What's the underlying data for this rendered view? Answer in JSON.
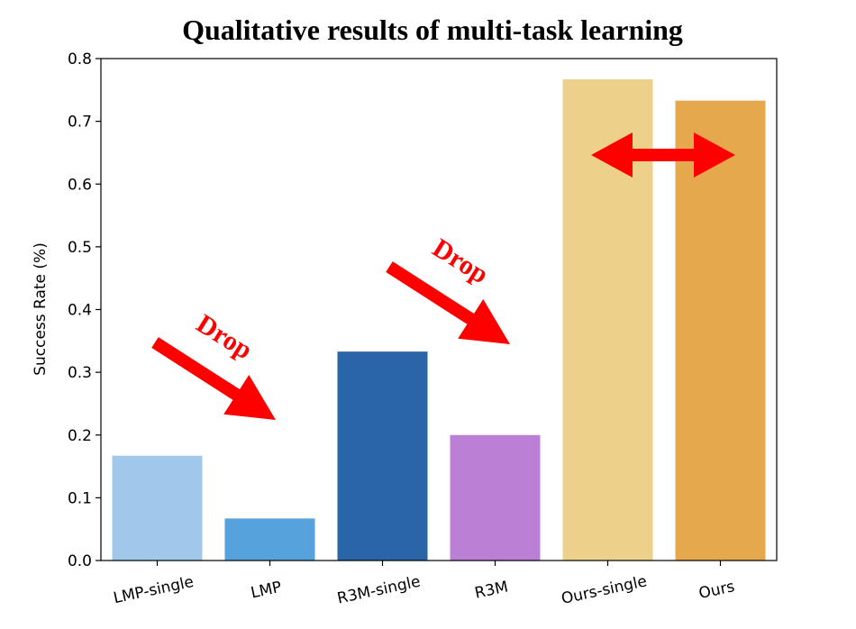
{
  "chart_data": {
    "type": "bar",
    "title": "Qualitative results of multi-task learning",
    "xlabel": "",
    "ylabel": "Success Rate (%)",
    "ylim": [
      0,
      0.8
    ],
    "yticks": [
      "0.0",
      "0.1",
      "0.2",
      "0.3",
      "0.4",
      "0.5",
      "0.6",
      "0.7",
      "0.8"
    ],
    "categories": [
      "LMP-single",
      "LMP",
      "R3M-single",
      "R3M",
      "Ours-single",
      "Ours"
    ],
    "values": [
      0.167,
      0.067,
      0.333,
      0.2,
      0.767,
      0.733
    ],
    "colors": [
      "#9fc8ea",
      "#56a2dc",
      "#2a65a9",
      "#bb7fd6",
      "#edd18b",
      "#e5a84c"
    ],
    "grid": false,
    "annotations": [
      {
        "text": "Drop",
        "color": "#ff0000",
        "between": [
          "LMP-single",
          "LMP"
        ],
        "arrow": "down-right"
      },
      {
        "text": "Drop",
        "color": "#ff0000",
        "between": [
          "R3M-single",
          "R3M"
        ],
        "arrow": "down-right"
      },
      {
        "text": "",
        "color": "#ff0000",
        "between": [
          "Ours-single",
          "Ours"
        ],
        "arrow": "double-horizontal"
      }
    ]
  }
}
